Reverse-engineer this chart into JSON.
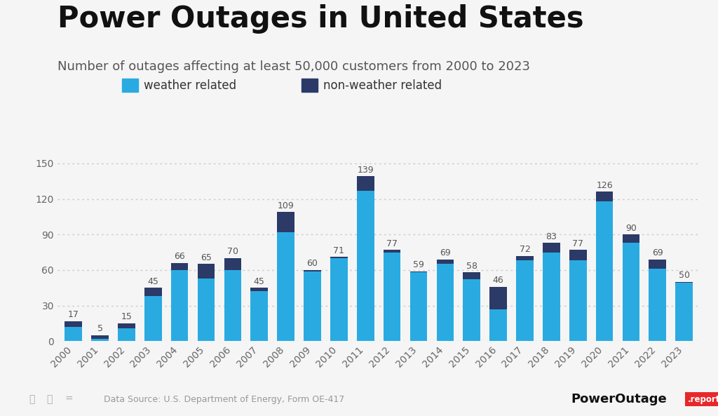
{
  "years": [
    2000,
    2001,
    2002,
    2003,
    2004,
    2005,
    2006,
    2007,
    2008,
    2009,
    2010,
    2011,
    2012,
    2013,
    2014,
    2015,
    2016,
    2017,
    2018,
    2019,
    2020,
    2021,
    2022,
    2023
  ],
  "total": [
    17,
    5,
    15,
    45,
    66,
    65,
    70,
    45,
    109,
    60,
    71,
    139,
    77,
    59,
    69,
    58,
    46,
    72,
    83,
    77,
    126,
    90,
    69,
    50
  ],
  "weather": [
    12,
    2,
    11,
    38,
    60,
    53,
    60,
    42,
    92,
    59,
    70,
    127,
    75,
    58,
    65,
    52,
    27,
    68,
    75,
    68,
    118,
    83,
    61,
    49
  ],
  "non_weather": [
    5,
    3,
    4,
    7,
    6,
    12,
    10,
    3,
    17,
    1,
    1,
    12,
    2,
    1,
    4,
    6,
    19,
    4,
    8,
    9,
    8,
    7,
    8,
    1
  ],
  "weather_color": "#29ABE2",
  "non_weather_color": "#2B3A67",
  "background_color": "#F5F5F5",
  "grid_color": "#CCCCCC",
  "title": "Power Outages in United States",
  "subtitle": "Number of outages affecting at least 50,000 customers from 2000 to 2023",
  "title_fontsize": 30,
  "subtitle_fontsize": 13,
  "tick_fontsize": 10,
  "label_fontsize": 9,
  "ylim": [
    0,
    165
  ],
  "yticks": [
    0,
    30,
    60,
    90,
    120,
    150
  ],
  "legend_weather": "weather related",
  "legend_non_weather": "non-weather related",
  "footer_text": "Data Source: U.S. Department of Energy, Form OE-417",
  "brand_text": "PowerOutage",
  "brand_suffix": ".report"
}
